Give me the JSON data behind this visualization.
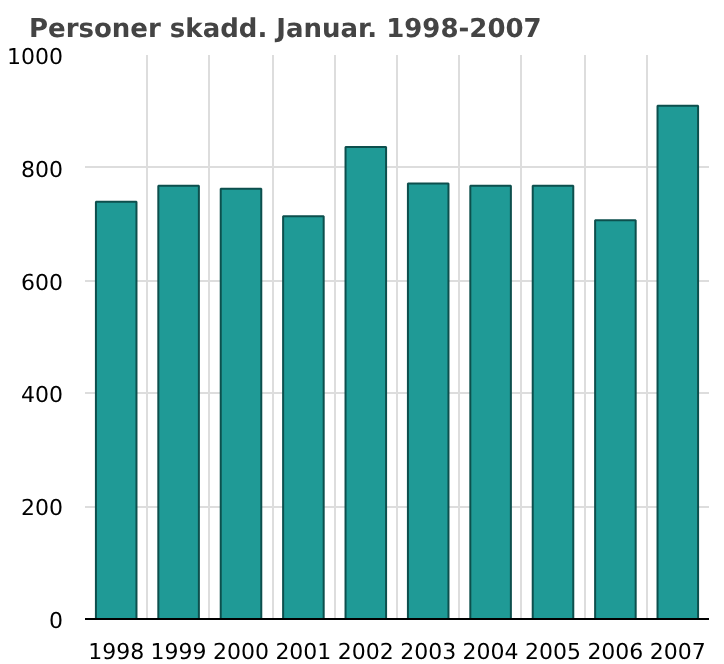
{
  "chart_data": {
    "type": "bar",
    "title": "Personer skadd. Januar. 1998-2007",
    "categories": [
      "1998",
      "1999",
      "2000",
      "2001",
      "2002",
      "2003",
      "2004",
      "2005",
      "2006",
      "2007"
    ],
    "values": [
      740,
      768,
      763,
      714,
      837,
      772,
      768,
      768,
      707,
      910
    ],
    "color": "#1f9a96",
    "ylim": [
      0,
      1000
    ],
    "yticks": [
      0,
      200,
      400,
      600,
      800,
      1000
    ],
    "grid": true
  }
}
